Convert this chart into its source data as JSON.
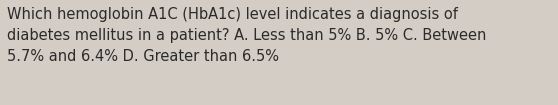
{
  "line1": "Which hemoglobin A1C (HbA1c) level indicates a diagnosis of",
  "line2": "diabetes mellitus in a patient? A. Less than 5% B. 5% C. Between",
  "line3": "5.7% and 6.4% D. Greater than 6.5%",
  "background_color": "#d3cdc5",
  "text_color": "#2b2b2b",
  "font_size": 10.5,
  "fig_width": 5.58,
  "fig_height": 1.05,
  "dpi": 100
}
